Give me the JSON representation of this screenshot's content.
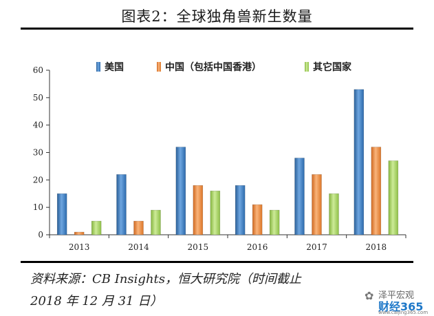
{
  "title": "图表2：全球独角兽新生数量",
  "source_line1": "资料来源：CB Insights，恒大研究院（时间截止",
  "source_line2": "2018 年 12 月 31 日）",
  "watermark": {
    "line1": "泽平宏观",
    "line2": "财经365",
    "line3": "www.caijing365.com"
  },
  "colors": {
    "usa": "#3d7ec2",
    "china": "#f28a3c",
    "others": "#a4d35e"
  },
  "chart_data": {
    "type": "bar",
    "categories": [
      "2013",
      "2014",
      "2015",
      "2016",
      "2017",
      "2018"
    ],
    "series": [
      {
        "name": "美国",
        "values": [
          15,
          22,
          32,
          18,
          28,
          53
        ]
      },
      {
        "name": "中国（包括中国香港）",
        "values": [
          1,
          5,
          18,
          11,
          22,
          32
        ]
      },
      {
        "name": "其它国家",
        "values": [
          5,
          9,
          16,
          9,
          15,
          27
        ]
      }
    ],
    "ylim": [
      0,
      60
    ],
    "yticks": [
      "0",
      "10",
      "20",
      "30",
      "40",
      "50",
      "60"
    ],
    "legend_position": "top",
    "grid": false
  }
}
